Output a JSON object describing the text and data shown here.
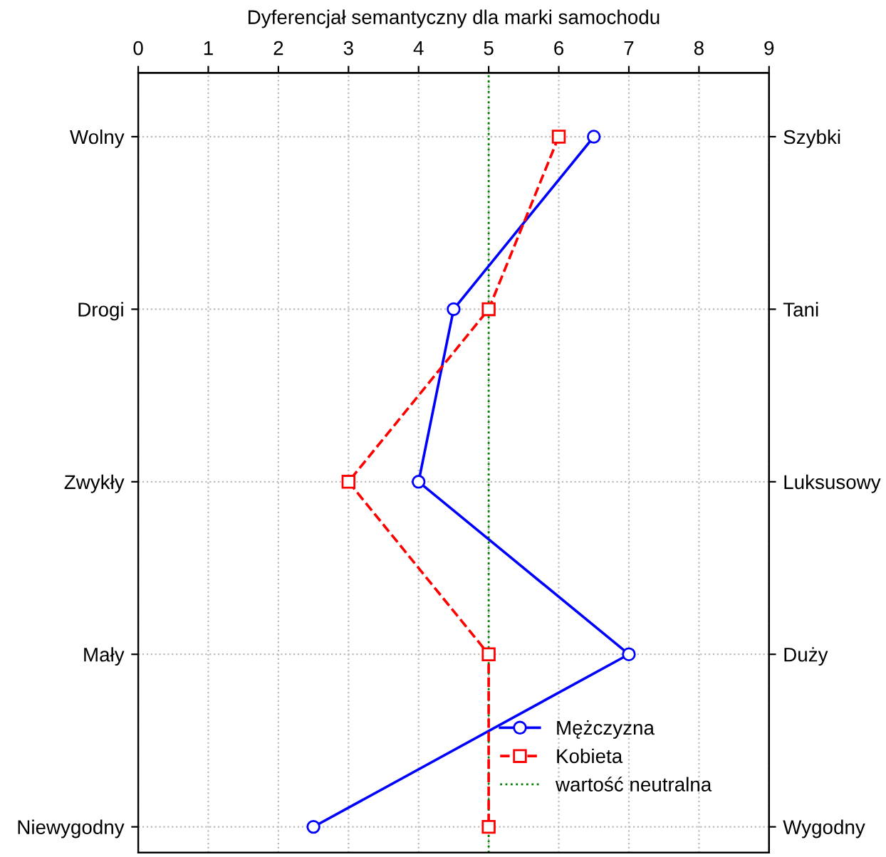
{
  "chart_data": {
    "type": "line",
    "orientation": "horizontal",
    "title": "Dyferencjał semantyczny dla marki samochodu",
    "categories": [
      "Wolny",
      "Drogi",
      "Zwykły",
      "Mały",
      "Niewygodny"
    ],
    "y2_categories": [
      "Szybki",
      "Tani",
      "Luksusowy",
      "Duży",
      "Wygodny"
    ],
    "series": [
      {
        "name": "Mężczyzna",
        "color": "#0000ff",
        "marker": "circle",
        "line_style": "solid",
        "values": [
          6.5,
          4.5,
          4,
          7,
          2.5
        ]
      },
      {
        "name": "Kobieta",
        "color": "#ff0000",
        "marker": "square",
        "line_style": "dashed",
        "values": [
          6,
          5,
          3,
          5,
          5
        ]
      }
    ],
    "ref_lines": [
      {
        "axis": "x",
        "value": 5,
        "label": "wartość neutralna",
        "color": "#008000",
        "line_style": "dotted"
      }
    ],
    "xlim": [
      0,
      9
    ],
    "xticks": [
      0,
      1,
      2,
      3,
      4,
      5,
      6,
      7,
      8,
      9
    ],
    "grid": true,
    "legend": "bottom right"
  }
}
